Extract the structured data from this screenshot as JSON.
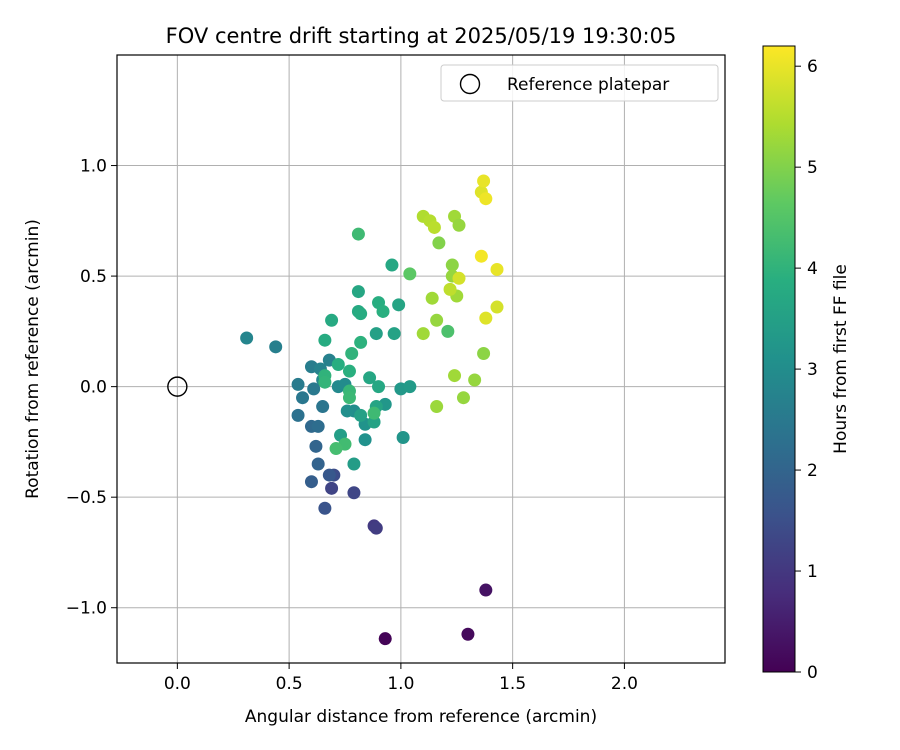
{
  "chart_data": {
    "type": "scatter",
    "title": "FOV centre drift starting at 2025/05/19 19:30:05",
    "xlabel": "Angular distance from reference (arcmin)",
    "ylabel": "Rotation from reference (arcmin)",
    "xlim": [
      -0.27,
      2.45
    ],
    "ylim": [
      -1.25,
      1.5
    ],
    "x_ticks": [
      0.0,
      0.5,
      1.0,
      1.5,
      2.0
    ],
    "x_tick_labels": [
      "0.0",
      "0.5",
      "1.0",
      "1.5",
      "2.0"
    ],
    "y_ticks": [
      -1.0,
      -0.5,
      0.0,
      0.5,
      1.0
    ],
    "y_tick_labels": [
      "−1.0",
      "−0.5",
      "0.0",
      "0.5",
      "1.0"
    ],
    "grid": true,
    "legend": {
      "placement": "top-right",
      "entries": [
        "Reference platepar"
      ]
    },
    "reference_point": {
      "x": 0.0,
      "y": 0.0
    },
    "colorbar": {
      "label": "Hours from first FF file",
      "colormap": "viridis",
      "range": [
        0,
        6.2
      ],
      "ticks": [
        0,
        1,
        2,
        3,
        4,
        5,
        6
      ],
      "tick_labels": [
        "0",
        "1",
        "2",
        "3",
        "4",
        "5",
        "6"
      ]
    },
    "points": [
      {
        "x": 0.93,
        "y": -1.14,
        "t": 0.05
      },
      {
        "x": 1.3,
        "y": -1.12,
        "t": 0.15
      },
      {
        "x": 1.38,
        "y": -0.92,
        "t": 0.3
      },
      {
        "x": 0.88,
        "y": -0.63,
        "t": 1.05
      },
      {
        "x": 0.89,
        "y": -0.64,
        "t": 1.1
      },
      {
        "x": 0.69,
        "y": -0.46,
        "t": 1.25
      },
      {
        "x": 0.79,
        "y": -0.48,
        "t": 1.3
      },
      {
        "x": 0.7,
        "y": -0.4,
        "t": 1.45
      },
      {
        "x": 0.66,
        "y": -0.55,
        "t": 1.6
      },
      {
        "x": 0.68,
        "y": -0.4,
        "t": 1.7
      },
      {
        "x": 0.6,
        "y": -0.43,
        "t": 1.85
      },
      {
        "x": 0.63,
        "y": -0.35,
        "t": 1.95
      },
      {
        "x": 0.62,
        "y": -0.27,
        "t": 2.0
      },
      {
        "x": 0.6,
        "y": -0.18,
        "t": 2.1
      },
      {
        "x": 0.63,
        "y": -0.18,
        "t": 2.2
      },
      {
        "x": 0.54,
        "y": -0.13,
        "t": 2.3
      },
      {
        "x": 0.65,
        "y": -0.09,
        "t": 2.4
      },
      {
        "x": 0.56,
        "y": -0.05,
        "t": 2.45
      },
      {
        "x": 0.61,
        "y": -0.01,
        "t": 2.5
      },
      {
        "x": 0.54,
        "y": 0.01,
        "t": 2.55
      },
      {
        "x": 0.6,
        "y": 0.09,
        "t": 2.6
      },
      {
        "x": 0.44,
        "y": 0.18,
        "t": 2.65
      },
      {
        "x": 0.31,
        "y": 0.22,
        "t": 2.8
      },
      {
        "x": 0.68,
        "y": 0.12,
        "t": 2.7
      },
      {
        "x": 0.64,
        "y": 0.08,
        "t": 2.75
      },
      {
        "x": 0.65,
        "y": 0.03,
        "t": 2.85
      },
      {
        "x": 0.72,
        "y": 0.0,
        "t": 2.9
      },
      {
        "x": 0.75,
        "y": 0.01,
        "t": 2.95
      },
      {
        "x": 0.79,
        "y": -0.11,
        "t": 3.0
      },
      {
        "x": 0.76,
        "y": -0.11,
        "t": 3.05
      },
      {
        "x": 0.84,
        "y": -0.24,
        "t": 3.1
      },
      {
        "x": 0.84,
        "y": -0.17,
        "t": 3.15
      },
      {
        "x": 1.01,
        "y": -0.23,
        "t": 3.2
      },
      {
        "x": 0.93,
        "y": -0.08,
        "t": 3.25
      },
      {
        "x": 1.0,
        "y": -0.01,
        "t": 3.3
      },
      {
        "x": 1.04,
        "y": 0.0,
        "t": 3.35
      },
      {
        "x": 0.79,
        "y": -0.35,
        "t": 3.4
      },
      {
        "x": 0.73,
        "y": -0.22,
        "t": 3.45
      },
      {
        "x": 0.82,
        "y": -0.13,
        "t": 3.5
      },
      {
        "x": 0.88,
        "y": -0.16,
        "t": 3.55
      },
      {
        "x": 0.89,
        "y": -0.09,
        "t": 3.6
      },
      {
        "x": 0.86,
        "y": 0.04,
        "t": 3.65
      },
      {
        "x": 0.9,
        "y": 0.0,
        "t": 3.7
      },
      {
        "x": 0.89,
        "y": 0.24,
        "t": 3.5
      },
      {
        "x": 0.97,
        "y": 0.24,
        "t": 3.55
      },
      {
        "x": 0.99,
        "y": 0.37,
        "t": 3.6
      },
      {
        "x": 0.96,
        "y": 0.55,
        "t": 3.7
      },
      {
        "x": 0.81,
        "y": 0.43,
        "t": 3.65
      },
      {
        "x": 0.81,
        "y": 0.34,
        "t": 3.75
      },
      {
        "x": 0.82,
        "y": 0.33,
        "t": 3.8
      },
      {
        "x": 0.9,
        "y": 0.38,
        "t": 3.85
      },
      {
        "x": 0.92,
        "y": 0.34,
        "t": 3.9
      },
      {
        "x": 0.82,
        "y": 0.2,
        "t": 3.95
      },
      {
        "x": 0.78,
        "y": 0.15,
        "t": 4.0
      },
      {
        "x": 0.69,
        "y": 0.3,
        "t": 3.75
      },
      {
        "x": 0.66,
        "y": 0.21,
        "t": 3.8
      },
      {
        "x": 0.72,
        "y": 0.1,
        "t": 3.85
      },
      {
        "x": 0.77,
        "y": 0.07,
        "t": 3.9
      },
      {
        "x": 0.66,
        "y": 0.05,
        "t": 4.0
      },
      {
        "x": 0.66,
        "y": 0.02,
        "t": 4.05
      },
      {
        "x": 0.77,
        "y": -0.02,
        "t": 4.1
      },
      {
        "x": 0.77,
        "y": -0.05,
        "t": 4.15
      },
      {
        "x": 0.88,
        "y": -0.12,
        "t": 4.2
      },
      {
        "x": 0.75,
        "y": -0.26,
        "t": 4.25
      },
      {
        "x": 0.71,
        "y": -0.28,
        "t": 4.3
      },
      {
        "x": 0.81,
        "y": 0.69,
        "t": 4.2
      },
      {
        "x": 1.04,
        "y": 0.51,
        "t": 4.6
      },
      {
        "x": 1.21,
        "y": 0.25,
        "t": 4.4
      },
      {
        "x": 1.1,
        "y": 0.24,
        "t": 5.3
      },
      {
        "x": 1.16,
        "y": 0.3,
        "t": 5.2
      },
      {
        "x": 1.14,
        "y": 0.4,
        "t": 5.3
      },
      {
        "x": 1.17,
        "y": 0.65,
        "t": 5.0
      },
      {
        "x": 1.23,
        "y": 0.55,
        "t": 5.1
      },
      {
        "x": 1.23,
        "y": 0.5,
        "t": 5.2
      },
      {
        "x": 1.25,
        "y": 0.41,
        "t": 5.3
      },
      {
        "x": 1.22,
        "y": 0.44,
        "t": 5.6
      },
      {
        "x": 1.26,
        "y": 0.49,
        "t": 5.8
      },
      {
        "x": 1.1,
        "y": 0.77,
        "t": 5.45
      },
      {
        "x": 1.13,
        "y": 0.75,
        "t": 5.5
      },
      {
        "x": 1.15,
        "y": 0.72,
        "t": 5.55
      },
      {
        "x": 1.24,
        "y": 0.77,
        "t": 5.3
      },
      {
        "x": 1.26,
        "y": 0.73,
        "t": 5.2
      },
      {
        "x": 1.36,
        "y": 0.88,
        "t": 5.9
      },
      {
        "x": 1.37,
        "y": 0.93,
        "t": 6.0
      },
      {
        "x": 1.38,
        "y": 0.85,
        "t": 6.05
      },
      {
        "x": 1.36,
        "y": 0.59,
        "t": 6.1
      },
      {
        "x": 1.43,
        "y": 0.53,
        "t": 6.0
      },
      {
        "x": 1.43,
        "y": 0.36,
        "t": 5.8
      },
      {
        "x": 1.38,
        "y": 0.31,
        "t": 5.9
      },
      {
        "x": 1.37,
        "y": 0.15,
        "t": 5.1
      },
      {
        "x": 1.33,
        "y": 0.03,
        "t": 5.2
      },
      {
        "x": 1.24,
        "y": 0.05,
        "t": 5.3
      },
      {
        "x": 1.28,
        "y": -0.05,
        "t": 5.2
      },
      {
        "x": 1.16,
        "y": -0.09,
        "t": 5.25
      }
    ]
  }
}
